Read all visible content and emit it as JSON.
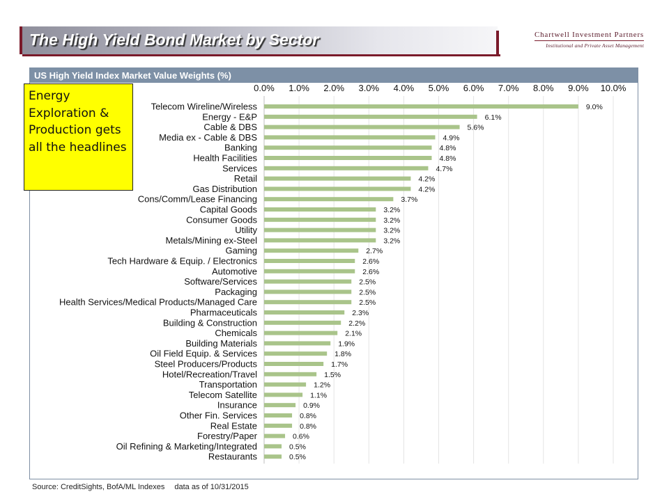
{
  "title": "The High Yield Bond Market by Sector",
  "logo": {
    "name": "Chartwell Investment Partners",
    "tagline": "Institutional and Private Asset Management"
  },
  "callout": {
    "text": "Energy Exploration & Production gets all the headlines"
  },
  "source": {
    "label": "Source: CreditSights, BofA/ML Indexes",
    "date": "data as of 10/31/2015"
  },
  "colors": {
    "bar": "#a9c48a",
    "header": "#7d90a6",
    "callout": "#ffff00",
    "accent": "#7a1a2a"
  },
  "chart_data": {
    "type": "bar",
    "orientation": "horizontal",
    "title": "US High Yield Index Market Value Weights (%)",
    "xlim": [
      0,
      10
    ],
    "tick_labels": [
      "0.0%",
      "1.0%",
      "2.0%",
      "3.0%",
      "4.0%",
      "5.0%",
      "6.0%",
      "7.0%",
      "8.0%",
      "9.0%",
      "10.0%"
    ],
    "grid": true,
    "categories": [
      "Telecom Wireline/Wireless",
      "Energy - E&P",
      "Cable & DBS",
      "Media ex - Cable & DBS",
      "Banking",
      "Health Facilities",
      "Services",
      "Retail",
      "Gas Distribution",
      "Cons/Comm/Lease Financing",
      "Capital Goods",
      "Consumer Goods",
      "Utility",
      "Metals/Mining ex-Steel",
      "Gaming",
      "Tech Hardware & Equip. / Electronics",
      "Automotive",
      "Software/Services",
      "Packaging",
      "Health Services/Medical Products/Managed Care",
      "Pharmaceuticals",
      "Building & Construction",
      "Chemicals",
      "Building Materials",
      "Oil Field Equip. & Services",
      "Steel Producers/Products",
      "Hotel/Recreation/Travel",
      "Transportation",
      "Telecom Satellite",
      "Insurance",
      "Other Fin. Services",
      "Real Estate",
      "Forestry/Paper",
      "Oil Refining & Marketing/Integrated",
      "Restaurants"
    ],
    "values": [
      9.0,
      6.1,
      5.6,
      4.9,
      4.8,
      4.8,
      4.7,
      4.2,
      4.2,
      3.7,
      3.2,
      3.2,
      3.2,
      3.2,
      2.7,
      2.6,
      2.6,
      2.5,
      2.5,
      2.5,
      2.3,
      2.2,
      2.1,
      1.9,
      1.8,
      1.7,
      1.5,
      1.2,
      1.1,
      0.9,
      0.8,
      0.8,
      0.6,
      0.5,
      0.5
    ],
    "value_labels": [
      "9.0%",
      "6.1%",
      "5.6%",
      "4.9%",
      "4.8%",
      "4.8%",
      "4.7%",
      "4.2%",
      "4.2%",
      "3.7%",
      "3.2%",
      "3.2%",
      "3.2%",
      "3.2%",
      "2.7%",
      "2.6%",
      "2.6%",
      "2.5%",
      "2.5%",
      "2.5%",
      "2.3%",
      "2.2%",
      "2.1%",
      "1.9%",
      "1.8%",
      "1.7%",
      "1.5%",
      "1.2%",
      "1.1%",
      "0.9%",
      "0.8%",
      "0.8%",
      "0.6%",
      "0.5%",
      "0.5%"
    ]
  }
}
